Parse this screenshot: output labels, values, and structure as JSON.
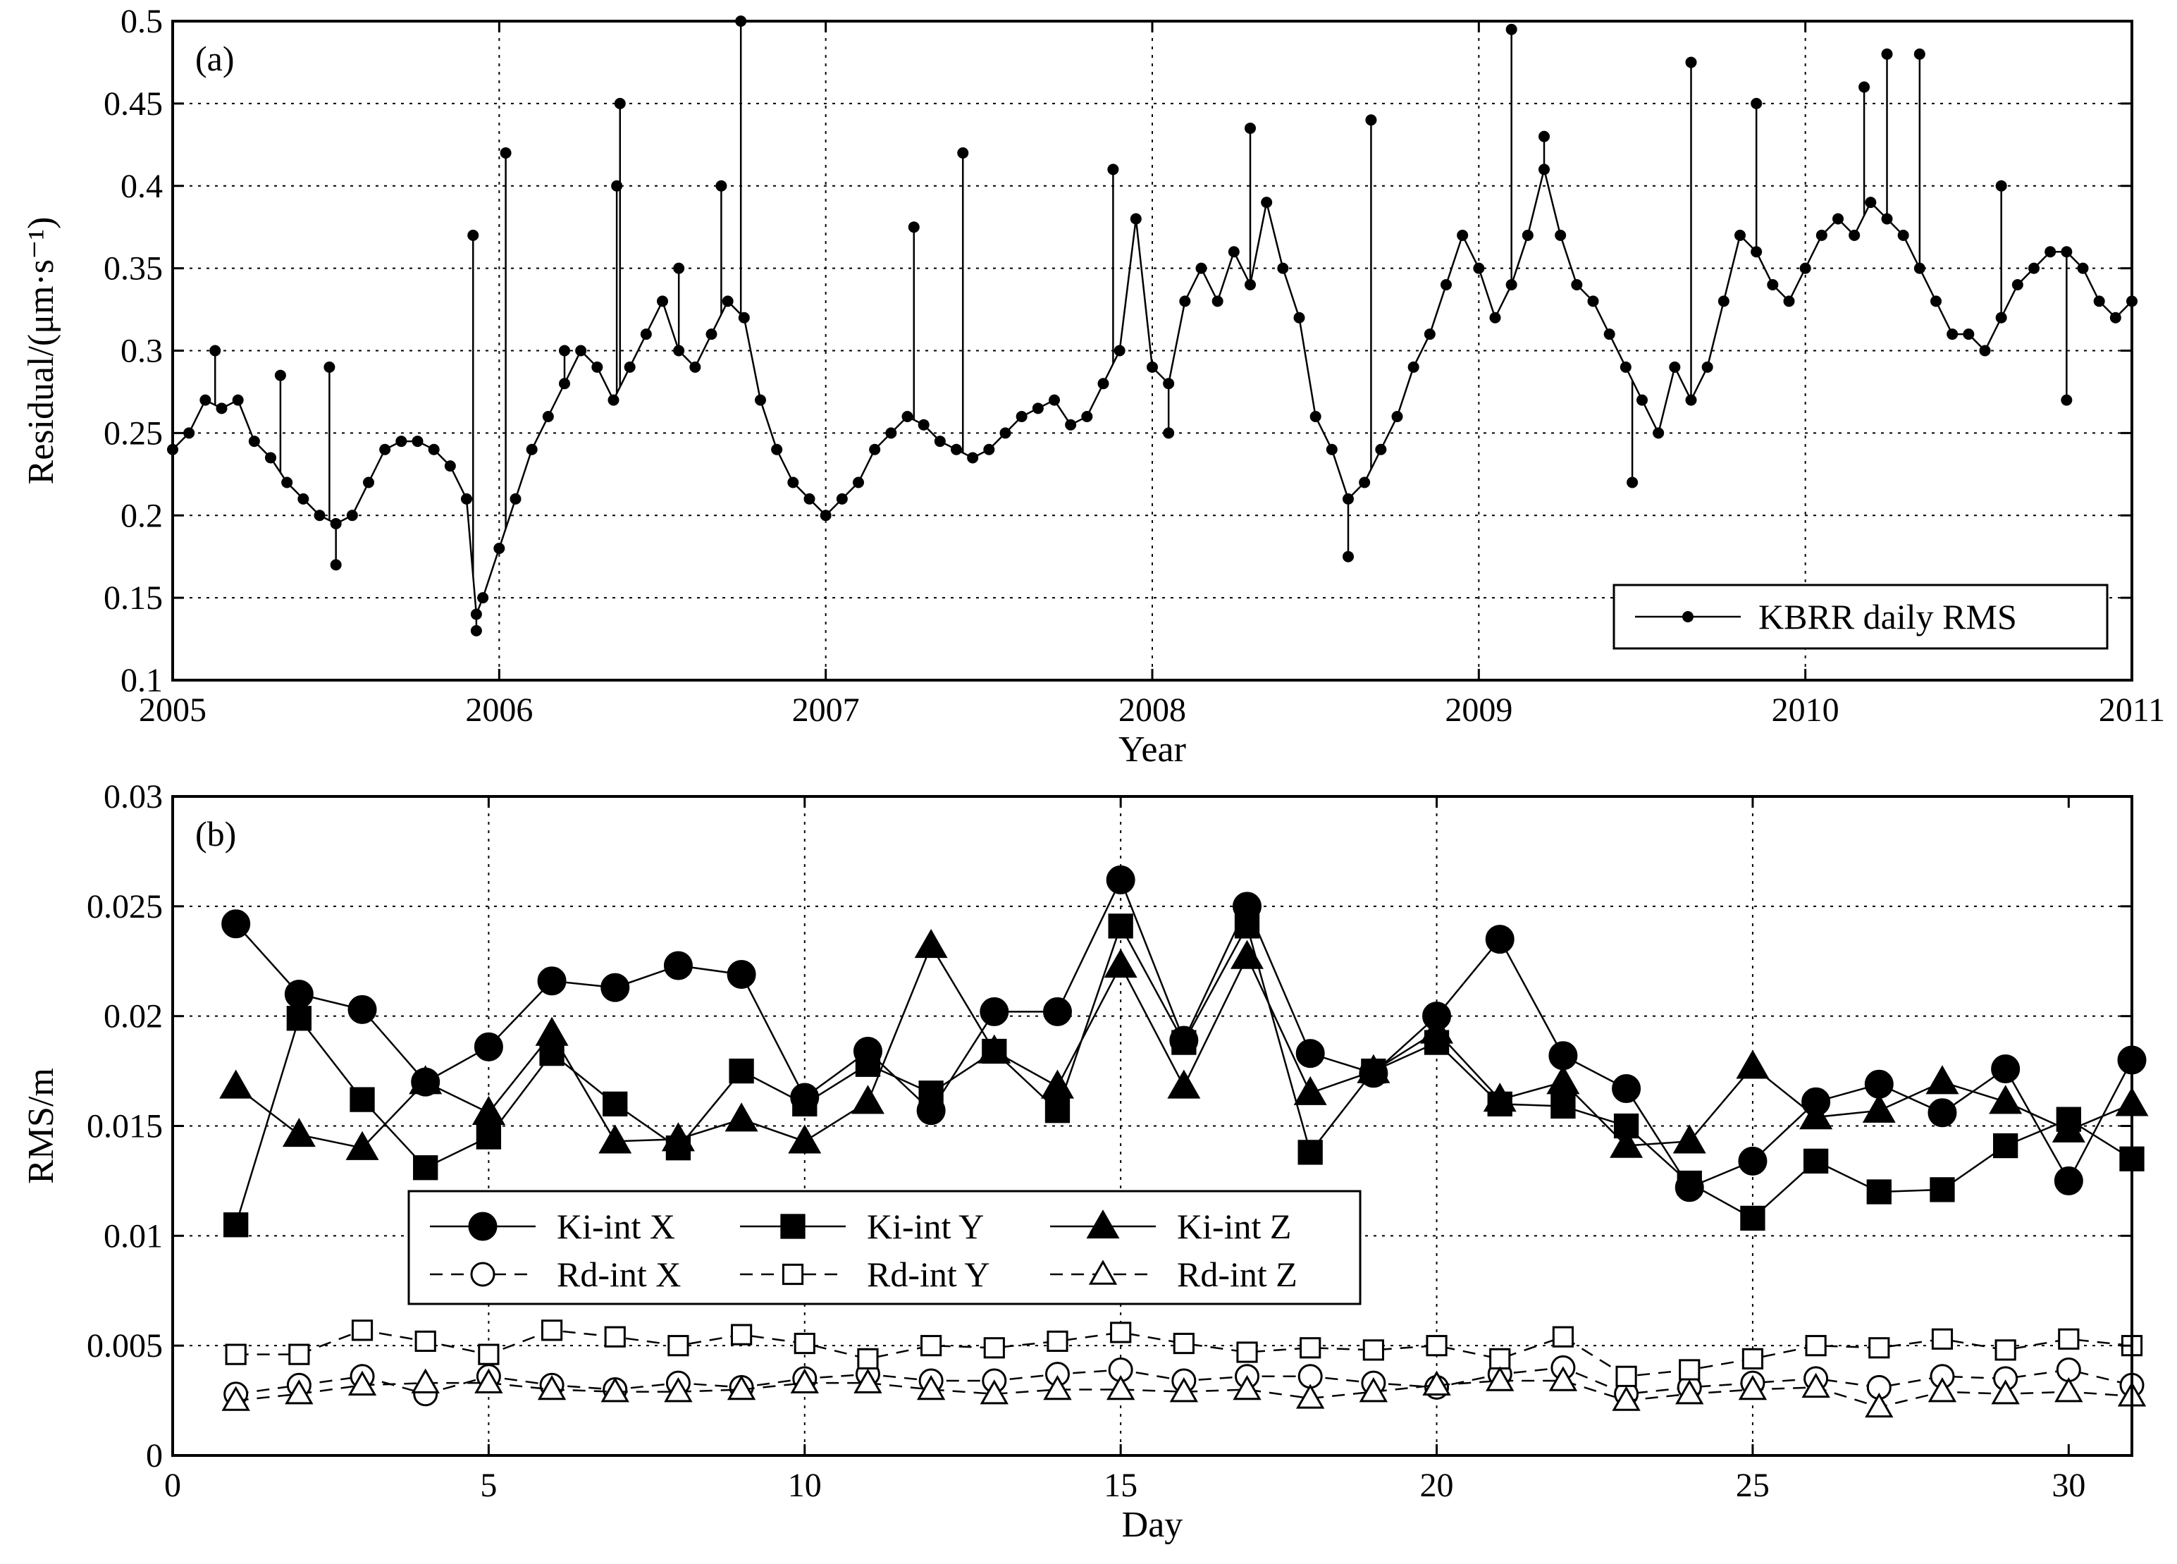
{
  "chart_data": [
    {
      "panel": "(a)",
      "type": "line",
      "xlabel": "Year",
      "ylabel": "Residual/(μm·s⁻¹)",
      "xlim": [
        2005,
        2011
      ],
      "ylim": [
        0.1,
        0.5
      ],
      "xticks": [
        "2005",
        "2006",
        "2007",
        "2008",
        "2009",
        "2010",
        "2011"
      ],
      "yticks": [
        "0.1",
        "0.15",
        "0.2",
        "0.25",
        "0.3",
        "0.35",
        "0.4",
        "0.45",
        "0.5"
      ],
      "grid": true,
      "legend": {
        "position": "bottom-right",
        "entries": [
          "KBRR daily RMS"
        ]
      },
      "series": [
        {
          "name": "KBRR daily RMS",
          "marker": "dot",
          "x": [
            2005.0,
            2005.05,
            2005.1,
            2005.15,
            2005.2,
            2005.25,
            2005.3,
            2005.35,
            2005.4,
            2005.45,
            2005.5,
            2005.55,
            2005.6,
            2005.65,
            2005.7,
            2005.75,
            2005.8,
            2005.85,
            2005.9,
            2005.93,
            2005.95,
            2006.0,
            2006.05,
            2006.1,
            2006.15,
            2006.2,
            2006.25,
            2006.3,
            2006.35,
            2006.4,
            2006.45,
            2006.5,
            2006.55,
            2006.6,
            2006.65,
            2006.7,
            2006.75,
            2006.8,
            2006.85,
            2006.9,
            2006.95,
            2007.0,
            2007.05,
            2007.1,
            2007.15,
            2007.2,
            2007.25,
            2007.3,
            2007.35,
            2007.4,
            2007.45,
            2007.5,
            2007.55,
            2007.6,
            2007.65,
            2007.7,
            2007.75,
            2007.8,
            2007.85,
            2007.9,
            2007.95,
            2008.0,
            2008.05,
            2008.1,
            2008.15,
            2008.2,
            2008.25,
            2008.3,
            2008.35,
            2008.4,
            2008.45,
            2008.5,
            2008.55,
            2008.6,
            2008.65,
            2008.7,
            2008.75,
            2008.8,
            2008.85,
            2008.9,
            2008.95,
            2009.0,
            2009.05,
            2009.1,
            2009.15,
            2009.2,
            2009.25,
            2009.3,
            2009.35,
            2009.4,
            2009.45,
            2009.5,
            2009.55,
            2009.6,
            2009.65,
            2009.7,
            2009.75,
            2009.8,
            2009.85,
            2009.9,
            2009.95,
            2010.0,
            2010.05,
            2010.1,
            2010.15,
            2010.2,
            2010.25,
            2010.3,
            2010.35,
            2010.4,
            2010.45,
            2010.5,
            2010.55,
            2010.6,
            2010.65,
            2010.7,
            2010.75,
            2010.8,
            2010.85,
            2010.9,
            2010.95,
            2011.0
          ],
          "y": [
            0.24,
            0.25,
            0.27,
            0.265,
            0.27,
            0.245,
            0.235,
            0.22,
            0.21,
            0.2,
            0.195,
            0.2,
            0.22,
            0.24,
            0.245,
            0.245,
            0.24,
            0.23,
            0.21,
            0.14,
            0.15,
            0.18,
            0.21,
            0.24,
            0.26,
            0.28,
            0.3,
            0.29,
            0.27,
            0.29,
            0.31,
            0.33,
            0.3,
            0.29,
            0.31,
            0.33,
            0.32,
            0.27,
            0.24,
            0.22,
            0.21,
            0.2,
            0.21,
            0.22,
            0.24,
            0.25,
            0.26,
            0.255,
            0.245,
            0.24,
            0.235,
            0.24,
            0.25,
            0.26,
            0.265,
            0.27,
            0.255,
            0.26,
            0.28,
            0.3,
            0.38,
            0.29,
            0.28,
            0.33,
            0.35,
            0.33,
            0.36,
            0.34,
            0.39,
            0.35,
            0.32,
            0.26,
            0.24,
            0.21,
            0.22,
            0.24,
            0.26,
            0.29,
            0.31,
            0.34,
            0.37,
            0.35,
            0.32,
            0.34,
            0.37,
            0.41,
            0.37,
            0.34,
            0.33,
            0.31,
            0.29,
            0.27,
            0.25,
            0.29,
            0.27,
            0.29,
            0.33,
            0.37,
            0.36,
            0.34,
            0.33,
            0.35,
            0.37,
            0.38,
            0.37,
            0.39,
            0.38,
            0.37,
            0.35,
            0.33,
            0.31,
            0.31,
            0.3,
            0.32,
            0.34,
            0.35,
            0.36,
            0.36,
            0.35,
            0.33,
            0.32,
            0.33
          ],
          "spikes": [
            [
              2005.13,
              0.3
            ],
            [
              2005.33,
              0.285
            ],
            [
              2005.48,
              0.29
            ],
            [
              2005.92,
              0.37
            ],
            [
              2006.02,
              0.42
            ],
            [
              2006.2,
              0.3
            ],
            [
              2006.36,
              0.4
            ],
            [
              2006.37,
              0.45
            ],
            [
              2006.55,
              0.35
            ],
            [
              2006.68,
              0.4
            ],
            [
              2006.74,
              0.5
            ],
            [
              2007.27,
              0.375
            ],
            [
              2007.42,
              0.42
            ],
            [
              2007.88,
              0.41
            ],
            [
              2008.3,
              0.435
            ],
            [
              2008.67,
              0.44
            ],
            [
              2009.1,
              0.495
            ],
            [
              2009.2,
              0.43
            ],
            [
              2009.65,
              0.475
            ],
            [
              2009.85,
              0.45
            ],
            [
              2010.18,
              0.46
            ],
            [
              2010.25,
              0.48
            ],
            [
              2010.35,
              0.48
            ],
            [
              2010.6,
              0.4
            ],
            [
              2008.6,
              0.175
            ],
            [
              2005.5,
              0.17
            ],
            [
              2005.93,
              0.13
            ],
            [
              2008.05,
              0.25
            ],
            [
              2009.47,
              0.22
            ],
            [
              2010.8,
              0.27
            ]
          ]
        }
      ]
    },
    {
      "panel": "(b)",
      "type": "line",
      "xlabel": "Day",
      "ylabel": "RMS/m",
      "xlim": [
        0,
        31
      ],
      "ylim": [
        0,
        0.03
      ],
      "xticks": [
        "0",
        "5",
        "10",
        "15",
        "20",
        "25",
        "30"
      ],
      "yticks": [
        "0",
        "0.005",
        "0.01",
        "0.015",
        "0.02",
        "0.025",
        "0.03"
      ],
      "grid": true,
      "legend": {
        "position": "lower-left",
        "entries": [
          "Ki-int X",
          "Ki-int Y",
          "Ki-int Z",
          "Rd-int X",
          "Rd-int Y",
          "Rd-int Z"
        ]
      },
      "categories": [
        1,
        2,
        3,
        4,
        5,
        6,
        7,
        8,
        9,
        10,
        11,
        12,
        13,
        14,
        15,
        16,
        17,
        18,
        19,
        20,
        21,
        22,
        23,
        24,
        25,
        26,
        27,
        28,
        29,
        30,
        31
      ],
      "series": [
        {
          "name": "Ki-int X",
          "marker": "circle",
          "filled": true,
          "dashed": false,
          "values": [
            0.0242,
            0.021,
            0.0203,
            0.017,
            0.0186,
            0.0216,
            0.0213,
            0.0223,
            0.0219,
            0.0163,
            0.0184,
            0.0157,
            0.0202,
            0.0202,
            0.0262,
            0.0189,
            0.025,
            0.0183,
            0.0174,
            0.02,
            0.0235,
            0.0182,
            0.0167,
            0.0122,
            0.0134,
            0.0161,
            0.0169,
            0.0156,
            0.0176,
            0.0125,
            0.018
          ]
        },
        {
          "name": "Ki-int Y",
          "marker": "square",
          "filled": true,
          "dashed": false,
          "values": [
            0.0105,
            0.0199,
            0.0162,
            0.0131,
            0.0145,
            0.0183,
            0.016,
            0.014,
            0.0175,
            0.016,
            0.0178,
            0.0165,
            0.0184,
            0.0157,
            0.0241,
            0.0188,
            0.0241,
            0.0138,
            0.0175,
            0.0188,
            0.016,
            0.0159,
            0.015,
            0.0124,
            0.0108,
            0.0134,
            0.012,
            0.0121,
            0.0141,
            0.0153,
            0.0135
          ]
        },
        {
          "name": "Ki-int Z",
          "marker": "triangle",
          "filled": true,
          "dashed": false,
          "values": [
            0.0168,
            0.0146,
            0.014,
            0.017,
            0.0156,
            0.0192,
            0.0143,
            0.0144,
            0.0153,
            0.0143,
            0.0161,
            0.0232,
            0.0184,
            0.0168,
            0.0223,
            0.0168,
            0.0227,
            0.0165,
            0.0175,
            0.0193,
            0.0162,
            0.017,
            0.0141,
            0.0143,
            0.0177,
            0.0154,
            0.0157,
            0.017,
            0.0161,
            0.0148,
            0.016
          ]
        },
        {
          "name": "Rd-int X",
          "marker": "circle",
          "filled": false,
          "dashed": true,
          "values": [
            0.0028,
            0.0032,
            0.0036,
            0.0028,
            0.0036,
            0.0032,
            0.003,
            0.0033,
            0.0031,
            0.0035,
            0.0037,
            0.0034,
            0.0034,
            0.0037,
            0.0039,
            0.0034,
            0.0036,
            0.0036,
            0.0033,
            0.0031,
            0.0037,
            0.004,
            0.0028,
            0.0031,
            0.0033,
            0.0035,
            0.0031,
            0.0036,
            0.0035,
            0.0039,
            0.0032
          ]
        },
        {
          "name": "Rd-int Y",
          "marker": "square",
          "filled": false,
          "dashed": true,
          "values": [
            0.0046,
            0.0046,
            0.0057,
            0.0052,
            0.0046,
            0.0057,
            0.0054,
            0.005,
            0.0055,
            0.0051,
            0.0044,
            0.005,
            0.0049,
            0.0052,
            0.0056,
            0.0051,
            0.0047,
            0.0049,
            0.0048,
            0.005,
            0.0044,
            0.0054,
            0.0036,
            0.0039,
            0.0044,
            0.005,
            0.0049,
            0.0053,
            0.0048,
            0.0053,
            0.005
          ]
        },
        {
          "name": "Rd-int Z",
          "marker": "triangle",
          "filled": false,
          "dashed": true,
          "values": [
            0.0025,
            0.0028,
            0.0032,
            0.0033,
            0.0033,
            0.003,
            0.0029,
            0.0029,
            0.003,
            0.0033,
            0.0033,
            0.003,
            0.0028,
            0.003,
            0.003,
            0.0029,
            0.003,
            0.0026,
            0.0029,
            0.0032,
            0.0034,
            0.0034,
            0.0025,
            0.0028,
            0.003,
            0.0031,
            0.0022,
            0.0029,
            0.0028,
            0.0029,
            0.0027
          ]
        }
      ]
    }
  ]
}
